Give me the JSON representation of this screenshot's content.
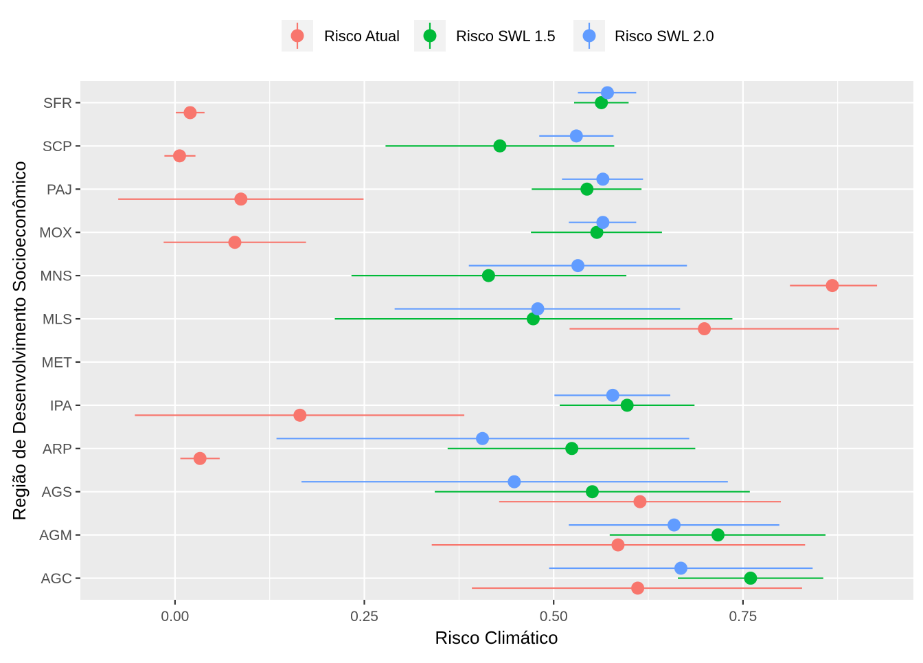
{
  "chart_data": {
    "type": "scatter",
    "title": "",
    "xlabel": "Risco Climático",
    "ylabel": "Região de Desenvolvimento Socioeconômico",
    "xlim": [
      -0.125,
      0.975
    ],
    "x_ticks": [
      0.0,
      0.25,
      0.5,
      0.75
    ],
    "x_tick_labels": [
      "0.00",
      "0.25",
      "0.50",
      "0.75"
    ],
    "categories": [
      "AGC",
      "AGM",
      "AGS",
      "ARP",
      "IPA",
      "MET",
      "MLS",
      "MNS",
      "MOX",
      "PAJ",
      "SCP",
      "SFR"
    ],
    "legend": {
      "position": "top",
      "items": [
        "Risco Atual",
        "Risco SWL 1.5",
        "Risco SWL 2.0"
      ]
    },
    "colors": {
      "atual": "#F8766D",
      "swl15": "#00BA38",
      "swl20": "#619CFF",
      "panel": "#EBEBEB",
      "grid": "#FFFFFF"
    },
    "series": [
      {
        "name": "Risco Atual",
        "color": "#F8766D",
        "points": [
          {
            "category": "AGC",
            "value": 0.611,
            "low": 0.392,
            "high": 0.828
          },
          {
            "category": "AGM",
            "value": 0.585,
            "low": 0.339,
            "high": 0.832
          },
          {
            "category": "AGS",
            "value": 0.614,
            "low": 0.428,
            "high": 0.8
          },
          {
            "category": "ARP",
            "value": 0.033,
            "low": 0.007,
            "high": 0.059
          },
          {
            "category": "IPA",
            "value": 0.165,
            "low": -0.053,
            "high": 0.382
          },
          {
            "category": "MLS",
            "value": 0.699,
            "low": 0.521,
            "high": 0.877
          },
          {
            "category": "MNS",
            "value": 0.868,
            "low": 0.812,
            "high": 0.927
          },
          {
            "category": "MOX",
            "value": 0.079,
            "low": -0.015,
            "high": 0.173
          },
          {
            "category": "PAJ",
            "value": 0.087,
            "low": -0.075,
            "high": 0.249
          },
          {
            "category": "SCP",
            "value": 0.006,
            "low": -0.014,
            "high": 0.027
          },
          {
            "category": "SFR",
            "value": 0.02,
            "low": 0.001,
            "high": 0.039
          }
        ]
      },
      {
        "name": "Risco SWL 1.5",
        "color": "#00BA38",
        "points": [
          {
            "category": "AGC",
            "value": 0.76,
            "low": 0.664,
            "high": 0.856
          },
          {
            "category": "AGM",
            "value": 0.717,
            "low": 0.574,
            "high": 0.859
          },
          {
            "category": "AGS",
            "value": 0.551,
            "low": 0.343,
            "high": 0.759
          },
          {
            "category": "ARP",
            "value": 0.524,
            "low": 0.36,
            "high": 0.687
          },
          {
            "category": "IPA",
            "value": 0.597,
            "low": 0.508,
            "high": 0.686
          },
          {
            "category": "MLS",
            "value": 0.473,
            "low": 0.211,
            "high": 0.736
          },
          {
            "category": "MNS",
            "value": 0.414,
            "low": 0.233,
            "high": 0.596
          },
          {
            "category": "MOX",
            "value": 0.557,
            "low": 0.47,
            "high": 0.643
          },
          {
            "category": "PAJ",
            "value": 0.544,
            "low": 0.471,
            "high": 0.616
          },
          {
            "category": "SCP",
            "value": 0.429,
            "low": 0.278,
            "high": 0.58
          },
          {
            "category": "SFR",
            "value": 0.563,
            "low": 0.527,
            "high": 0.599
          }
        ]
      },
      {
        "name": "Risco SWL 2.0",
        "color": "#619CFF",
        "points": [
          {
            "category": "AGC",
            "value": 0.668,
            "low": 0.494,
            "high": 0.842
          },
          {
            "category": "AGM",
            "value": 0.659,
            "low": 0.52,
            "high": 0.798
          },
          {
            "category": "AGS",
            "value": 0.448,
            "low": 0.167,
            "high": 0.73
          },
          {
            "category": "ARP",
            "value": 0.406,
            "low": 0.134,
            "high": 0.679
          },
          {
            "category": "IPA",
            "value": 0.578,
            "low": 0.501,
            "high": 0.654
          },
          {
            "category": "MLS",
            "value": 0.479,
            "low": 0.29,
            "high": 0.667
          },
          {
            "category": "MNS",
            "value": 0.532,
            "low": 0.388,
            "high": 0.676
          },
          {
            "category": "MOX",
            "value": 0.565,
            "low": 0.52,
            "high": 0.609
          },
          {
            "category": "PAJ",
            "value": 0.565,
            "low": 0.511,
            "high": 0.618
          },
          {
            "category": "SCP",
            "value": 0.53,
            "low": 0.481,
            "high": 0.579
          },
          {
            "category": "SFR",
            "value": 0.571,
            "low": 0.532,
            "high": 0.609
          }
        ]
      }
    ]
  }
}
